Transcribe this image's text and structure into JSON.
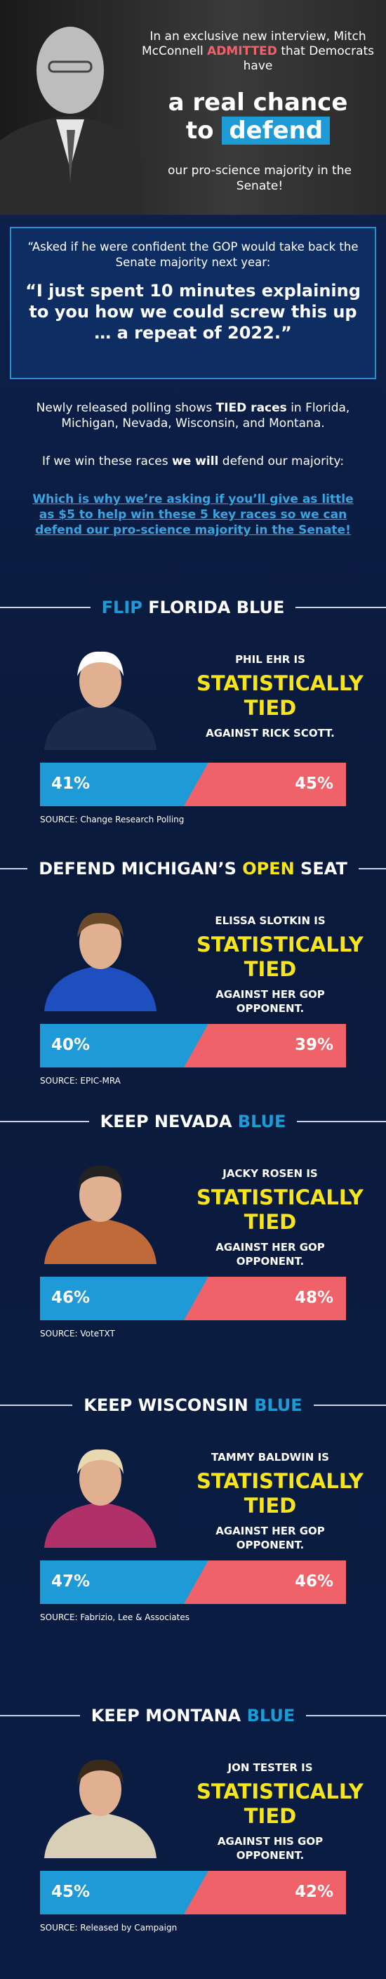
{
  "header": {
    "intro": [
      {
        "text": "In an exclusive new interview, Mitch McConnell "
      },
      {
        "text": "ADMITTED",
        "color": "#f0626a"
      },
      {
        "text": " that Democrats have"
      }
    ],
    "headline_1": "a real chance",
    "headline_2": "to",
    "headline_highlight": "defend",
    "tagline": "our pro-science majority in the Senate!"
  },
  "quote": {
    "lead": "“Asked if he were confident the GOP would take back the Senate majority next year:",
    "text": "“I just spent 10 minutes explaining to you how we could screw this up … a repeat of 2022.”"
  },
  "body": {
    "paragraph_1": [
      {
        "text": "Newly released polling shows "
      },
      {
        "text": "TIED races",
        "bold": true
      },
      {
        "text": " in Florida, Michigan, Nevada, Wisconsin, and Montana."
      }
    ],
    "paragraph_2": [
      {
        "text": "If we win these races "
      },
      {
        "text": "we will",
        "bold": true
      },
      {
        "text": " defend our majority:"
      }
    ],
    "link": "Which is why we’re asking if you’ll give as little as $5 to help win these 5 key races so we can defend our pro-science majority in the Senate!"
  },
  "races": [
    {
      "heading": [
        {
          "text": "FLIP",
          "color": "#1e9ad6"
        },
        {
          "text": " FLORIDA BLUE"
        }
      ],
      "candidate": "PHIL EHR IS",
      "status": "STATISTICALLY TIED",
      "opponent": "AGAINST RICK SCOTT.",
      "dem": "41%",
      "gop": "45%",
      "source": "SOURCE: Change Research Polling"
    },
    {
      "heading": [
        {
          "text": "DEFEND MICHIGAN’S "
        },
        {
          "text": "OPEN",
          "color": "#f7e51a"
        },
        {
          "text": " SEAT"
        }
      ],
      "candidate": "ELISSA SLOTKIN IS",
      "status": "STATISTICALLY TIED",
      "opponent": "AGAINST HER GOP OPPONENT.",
      "dem": "40%",
      "gop": "39%",
      "source": "SOURCE: EPIC-MRA"
    },
    {
      "heading": [
        {
          "text": "KEEP NEVADA "
        },
        {
          "text": "BLUE",
          "color": "#1e9ad6"
        }
      ],
      "candidate": "JACKY ROSEN IS",
      "status": "STATISTICALLY TIED",
      "opponent": "AGAINST HER GOP OPPONENT.",
      "dem": "46%",
      "gop": "48%",
      "source": "SOURCE: VoteTXT"
    },
    {
      "heading": [
        {
          "text": "KEEP WISCONSIN "
        },
        {
          "text": "BLUE",
          "color": "#1e9ad6"
        }
      ],
      "candidate": "TAMMY BALDWIN IS",
      "status": "STATISTICALLY TIED",
      "opponent": "AGAINST HER GOP OPPONENT.",
      "dem": "47%",
      "gop": "46%",
      "source": "SOURCE: Fabrizio, Lee & Associates"
    },
    {
      "heading": [
        {
          "text": "KEEP MONTANA "
        },
        {
          "text": "BLUE",
          "color": "#1e9ad6"
        }
      ],
      "candidate": "JON TESTER IS",
      "status": "STATISTICALLY TIED",
      "opponent": "AGAINST HIS GOP OPPONENT.",
      "dem": "45%",
      "gop": "42%",
      "source": "SOURCE: Released by Campaign"
    }
  ]
}
